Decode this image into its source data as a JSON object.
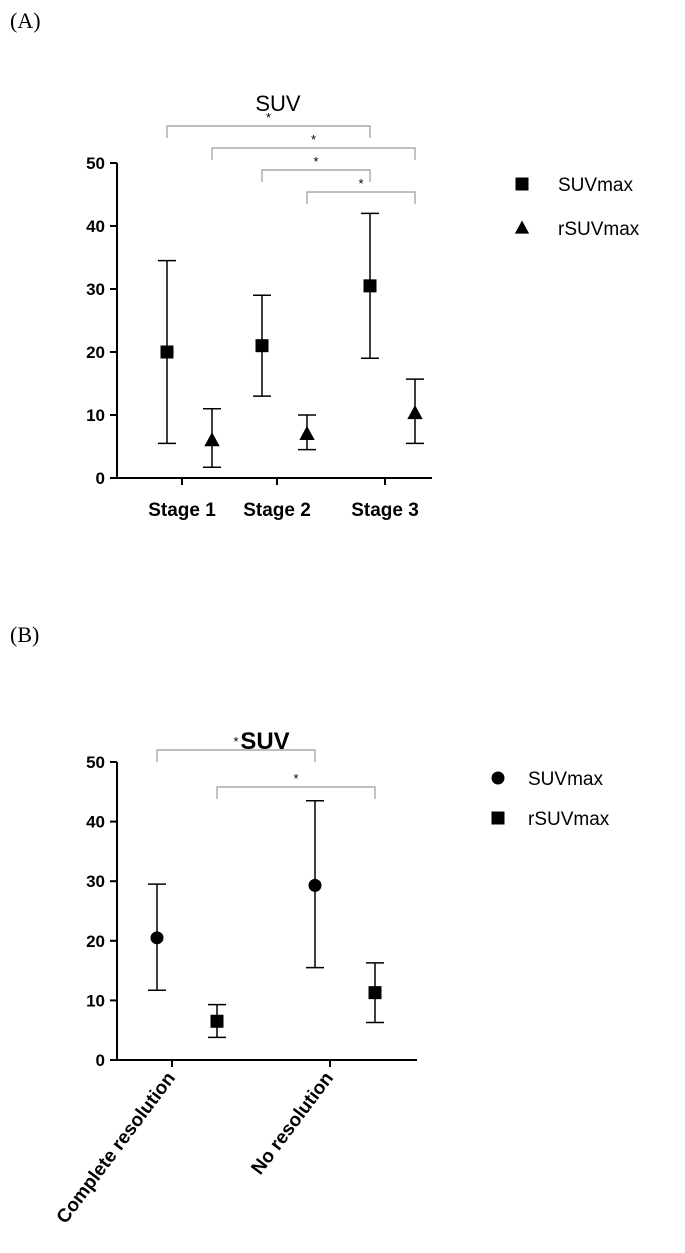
{
  "panels": [
    {
      "label": "(A)",
      "chart_data": {
        "type": "scatter",
        "title": "SUV",
        "categories": [
          "Stage 1",
          "Stage 2",
          "Stage 3"
        ],
        "ylim": [
          0,
          50
        ],
        "yticks": [
          0,
          10,
          20,
          30,
          40,
          50
        ],
        "series": [
          {
            "name": "SUVmax",
            "marker": "square",
            "values": [
              20,
              21,
              30.5
            ],
            "err_low": [
              5.5,
              13,
              19
            ],
            "err_high": [
              34.5,
              29,
              42
            ]
          },
          {
            "name": "rSUVmax",
            "marker": "triangle",
            "values": [
              6,
              7,
              10.3
            ],
            "err_low": [
              1.7,
              4.5,
              5.5
            ],
            "err_high": [
              11,
              10,
              15.7
            ]
          }
        ],
        "significance": [
          {
            "from_category": 0,
            "from_series": 0,
            "to_category": 2,
            "to_series": 0,
            "label": "*"
          },
          {
            "from_category": 0,
            "from_series": 1,
            "to_category": 2,
            "to_series": 1,
            "label": "*"
          },
          {
            "from_category": 1,
            "from_series": 0,
            "to_category": 2,
            "to_series": 0,
            "label": "*"
          },
          {
            "from_category": 1,
            "from_series": 1,
            "to_category": 2,
            "to_series": 1,
            "label": "*"
          }
        ],
        "legend_position": "right",
        "grid": false
      }
    },
    {
      "label": "(B)",
      "chart_data": {
        "type": "scatter",
        "title": "SUV",
        "categories": [
          "Complete resolution",
          "No resolution"
        ],
        "ylim": [
          0,
          50
        ],
        "yticks": [
          0,
          10,
          20,
          30,
          40,
          50
        ],
        "series": [
          {
            "name": "SUVmax",
            "marker": "circle",
            "values": [
              20.5,
              29.3
            ],
            "err_low": [
              11.7,
              15.5
            ],
            "err_high": [
              29.5,
              43.5
            ]
          },
          {
            "name": "rSUVmax",
            "marker": "square",
            "values": [
              6.5,
              11.3
            ],
            "err_low": [
              3.8,
              6.3
            ],
            "err_high": [
              9.3,
              16.3
            ]
          }
        ],
        "significance": [
          {
            "from_category": 0,
            "from_series": 0,
            "to_category": 1,
            "to_series": 0,
            "label": "*"
          },
          {
            "from_category": 0,
            "from_series": 1,
            "to_category": 1,
            "to_series": 1,
            "label": "*"
          }
        ],
        "legend_position": "right",
        "grid": false
      }
    }
  ]
}
